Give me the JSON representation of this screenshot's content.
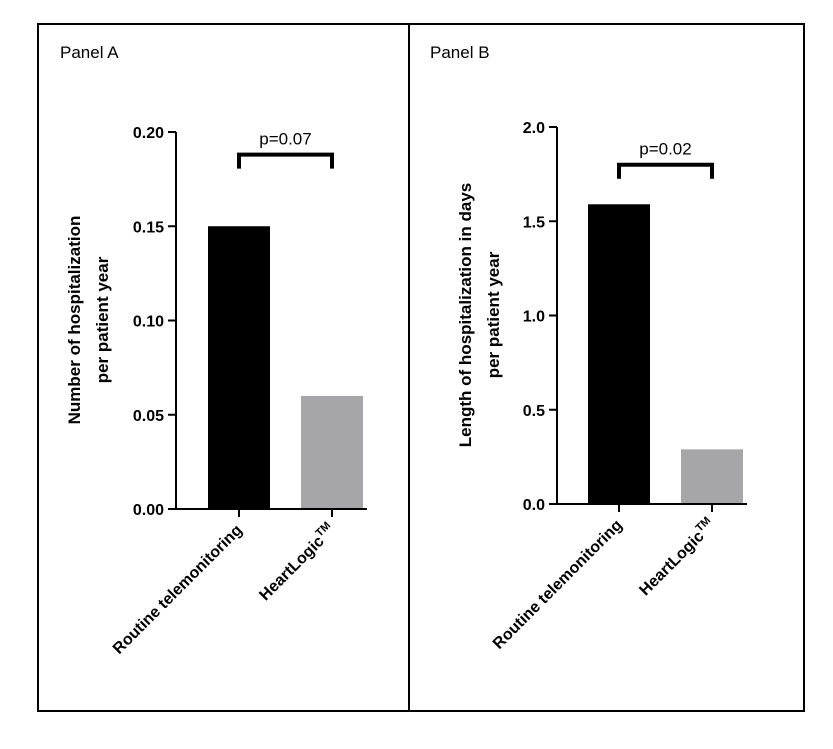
{
  "colors": {
    "frame": "#000000",
    "routine_bar": "#000000",
    "heartlogic_bar": "#a6a6a8",
    "background": "#ffffff"
  },
  "chart_data": [
    {
      "type": "bar",
      "panel_title": "Panel A",
      "ylabel_line1": "Number of hospitalization",
      "ylabel_line2": "per patient year",
      "categories": [
        "Routine telemonitoring",
        "HeartLogic"
      ],
      "category_superscripts": [
        "",
        "TM"
      ],
      "values": [
        0.15,
        0.06
      ],
      "ylim": [
        0,
        0.2
      ],
      "yticks": [
        0,
        0.05,
        0.1,
        0.15,
        0.2
      ],
      "ytick_labels": [
        "0.00",
        "0.05",
        "0.10",
        "0.15",
        "0.20"
      ],
      "bar_colors": [
        "#000000",
        "#a6a6a8"
      ],
      "annotation": {
        "text": "p=0.07",
        "from": 0,
        "to": 1,
        "y": 0.188
      }
    },
    {
      "type": "bar",
      "panel_title": "Panel B",
      "ylabel_line1": "Length of hospitalization in days",
      "ylabel_line2": "per patient year",
      "categories": [
        "Routine telemonitoring",
        "HeartLogic"
      ],
      "category_superscripts": [
        "",
        "TM"
      ],
      "values": [
        1.59,
        0.29
      ],
      "ylim": [
        0,
        2.0
      ],
      "yticks": [
        0,
        0.5,
        1.0,
        1.5,
        2.0
      ],
      "ytick_labels": [
        "0.0",
        "0.5",
        "1.0",
        "1.5",
        "2.0"
      ],
      "bar_colors": [
        "#000000",
        "#a6a6a8"
      ],
      "annotation": {
        "text": "p=0.02",
        "from": 0,
        "to": 1,
        "y": 1.8
      }
    }
  ]
}
